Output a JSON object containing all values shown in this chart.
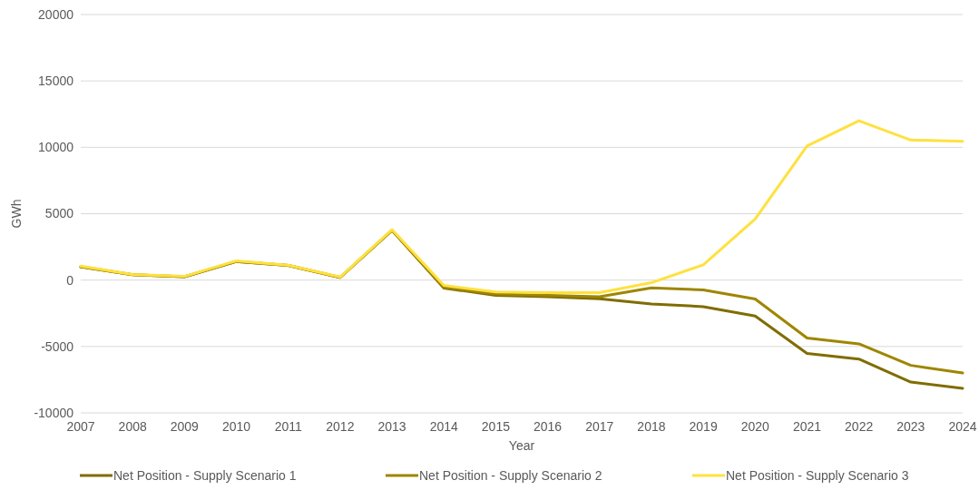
{
  "chart_data": {
    "type": "line",
    "xlabel": "Year",
    "ylabel": "GWh",
    "categories": [
      "2007",
      "2008",
      "2009",
      "2010",
      "2011",
      "2012",
      "2013",
      "2014",
      "2015",
      "2016",
      "2017",
      "2018",
      "2019",
      "2020",
      "2021",
      "2022",
      "2023",
      "2024"
    ],
    "series": [
      {
        "name": "Net Position - Supply Scenario 1",
        "color": "#7f6d00",
        "values": [
          1000,
          400,
          250,
          1400,
          1100,
          200,
          3750,
          -600,
          -1150,
          -1250,
          -1400,
          -1800,
          -2000,
          -2700,
          -5530,
          -5950,
          -7680,
          -8150
        ]
      },
      {
        "name": "Net Position - Supply Scenario 2",
        "color": "#9e8600",
        "values": [
          1000,
          400,
          250,
          1400,
          1100,
          200,
          3750,
          -550,
          -1050,
          -1150,
          -1250,
          -590,
          -740,
          -1420,
          -4360,
          -4800,
          -6420,
          -7000
        ]
      },
      {
        "name": "Net Position - Supply Scenario 3",
        "color": "#ffe13f",
        "values": [
          1050,
          420,
          280,
          1450,
          1120,
          230,
          3800,
          -400,
          -900,
          -950,
          -950,
          -200,
          1150,
          4600,
          10100,
          12000,
          10550,
          10450
        ]
      }
    ],
    "ylim": [
      -10000,
      20000
    ],
    "yticks": [
      -10000,
      -5000,
      0,
      5000,
      10000,
      15000,
      20000
    ],
    "grid": "y",
    "legend": "bottom",
    "marker": "none",
    "line_style": "solid"
  }
}
